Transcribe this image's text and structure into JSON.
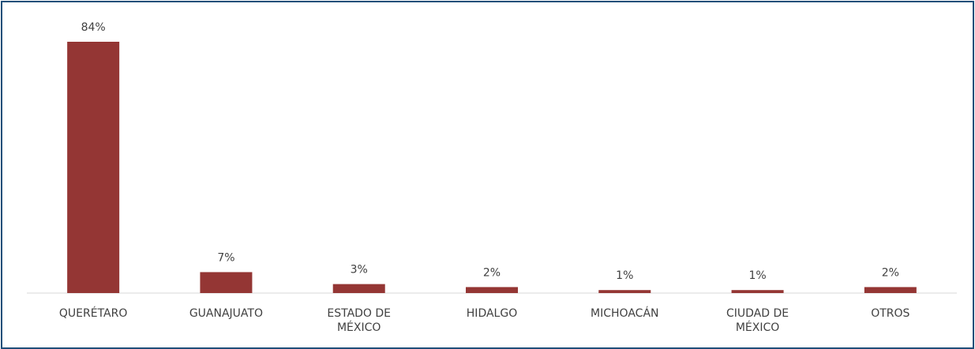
{
  "chart_data": {
    "type": "bar",
    "categories": [
      "QUERÉTARO",
      "GUANAJUATO",
      "ESTADO DE MÉXICO",
      "HIDALGO",
      "MICHOACÁN",
      "CIUDAD DE MÉXICO",
      "OTROS"
    ],
    "values": [
      84,
      7,
      3,
      2,
      1,
      1,
      2
    ],
    "value_labels": [
      "84%",
      "7%",
      "3%",
      "2%",
      "1%",
      "1%",
      "2%"
    ],
    "color": "#943634"
  }
}
